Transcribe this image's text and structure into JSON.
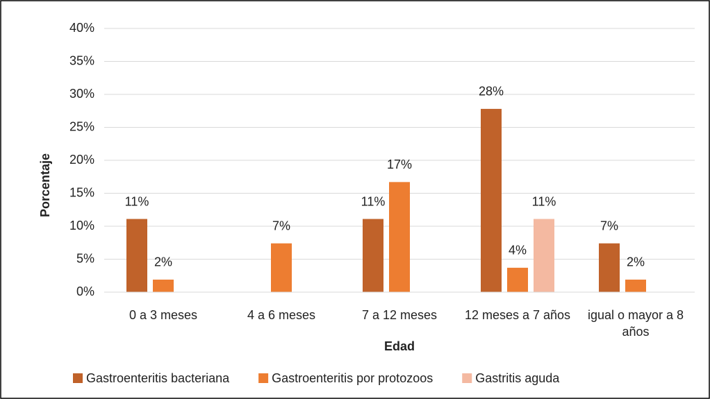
{
  "chart_data": {
    "type": "bar",
    "categories": [
      "0 a 3 meses",
      "4 a 6 meses",
      "7 a 12 meses",
      "12 meses a 7 años",
      "igual o mayor a 8 años"
    ],
    "series": [
      {
        "name": "Gastroenteritis bacteriana",
        "color": "#c0622a",
        "values": [
          11.1,
          null,
          11.1,
          27.8,
          7.4
        ],
        "value_labels": [
          "11%",
          null,
          "11%",
          "28%",
          "7%"
        ]
      },
      {
        "name": "Gastroenteritis por protozoos",
        "color": "#ed7d31",
        "values": [
          1.9,
          7.4,
          16.7,
          3.7,
          1.9
        ],
        "value_labels": [
          "2%",
          "7%",
          "17%",
          "4%",
          "2%"
        ]
      },
      {
        "name": "Gastritis aguda",
        "color": "#f4b9a1",
        "values": [
          null,
          null,
          null,
          11.1,
          null
        ],
        "value_labels": [
          null,
          null,
          null,
          "11%",
          null
        ]
      }
    ],
    "xlabel": "Edad",
    "ylabel": "Porcentaje",
    "ylim": [
      0,
      40
    ],
    "yticks": [
      {
        "value": 0,
        "label": "0%"
      },
      {
        "value": 5,
        "label": "5%"
      },
      {
        "value": 10,
        "label": "10%"
      },
      {
        "value": 15,
        "label": "15%"
      },
      {
        "value": 20,
        "label": "20%"
      },
      {
        "value": 25,
        "label": "25%"
      },
      {
        "value": 30,
        "label": "30%"
      },
      {
        "value": 35,
        "label": "35%"
      },
      {
        "value": 40,
        "label": "40%"
      }
    ],
    "grid": true,
    "legend": "bottom"
  }
}
